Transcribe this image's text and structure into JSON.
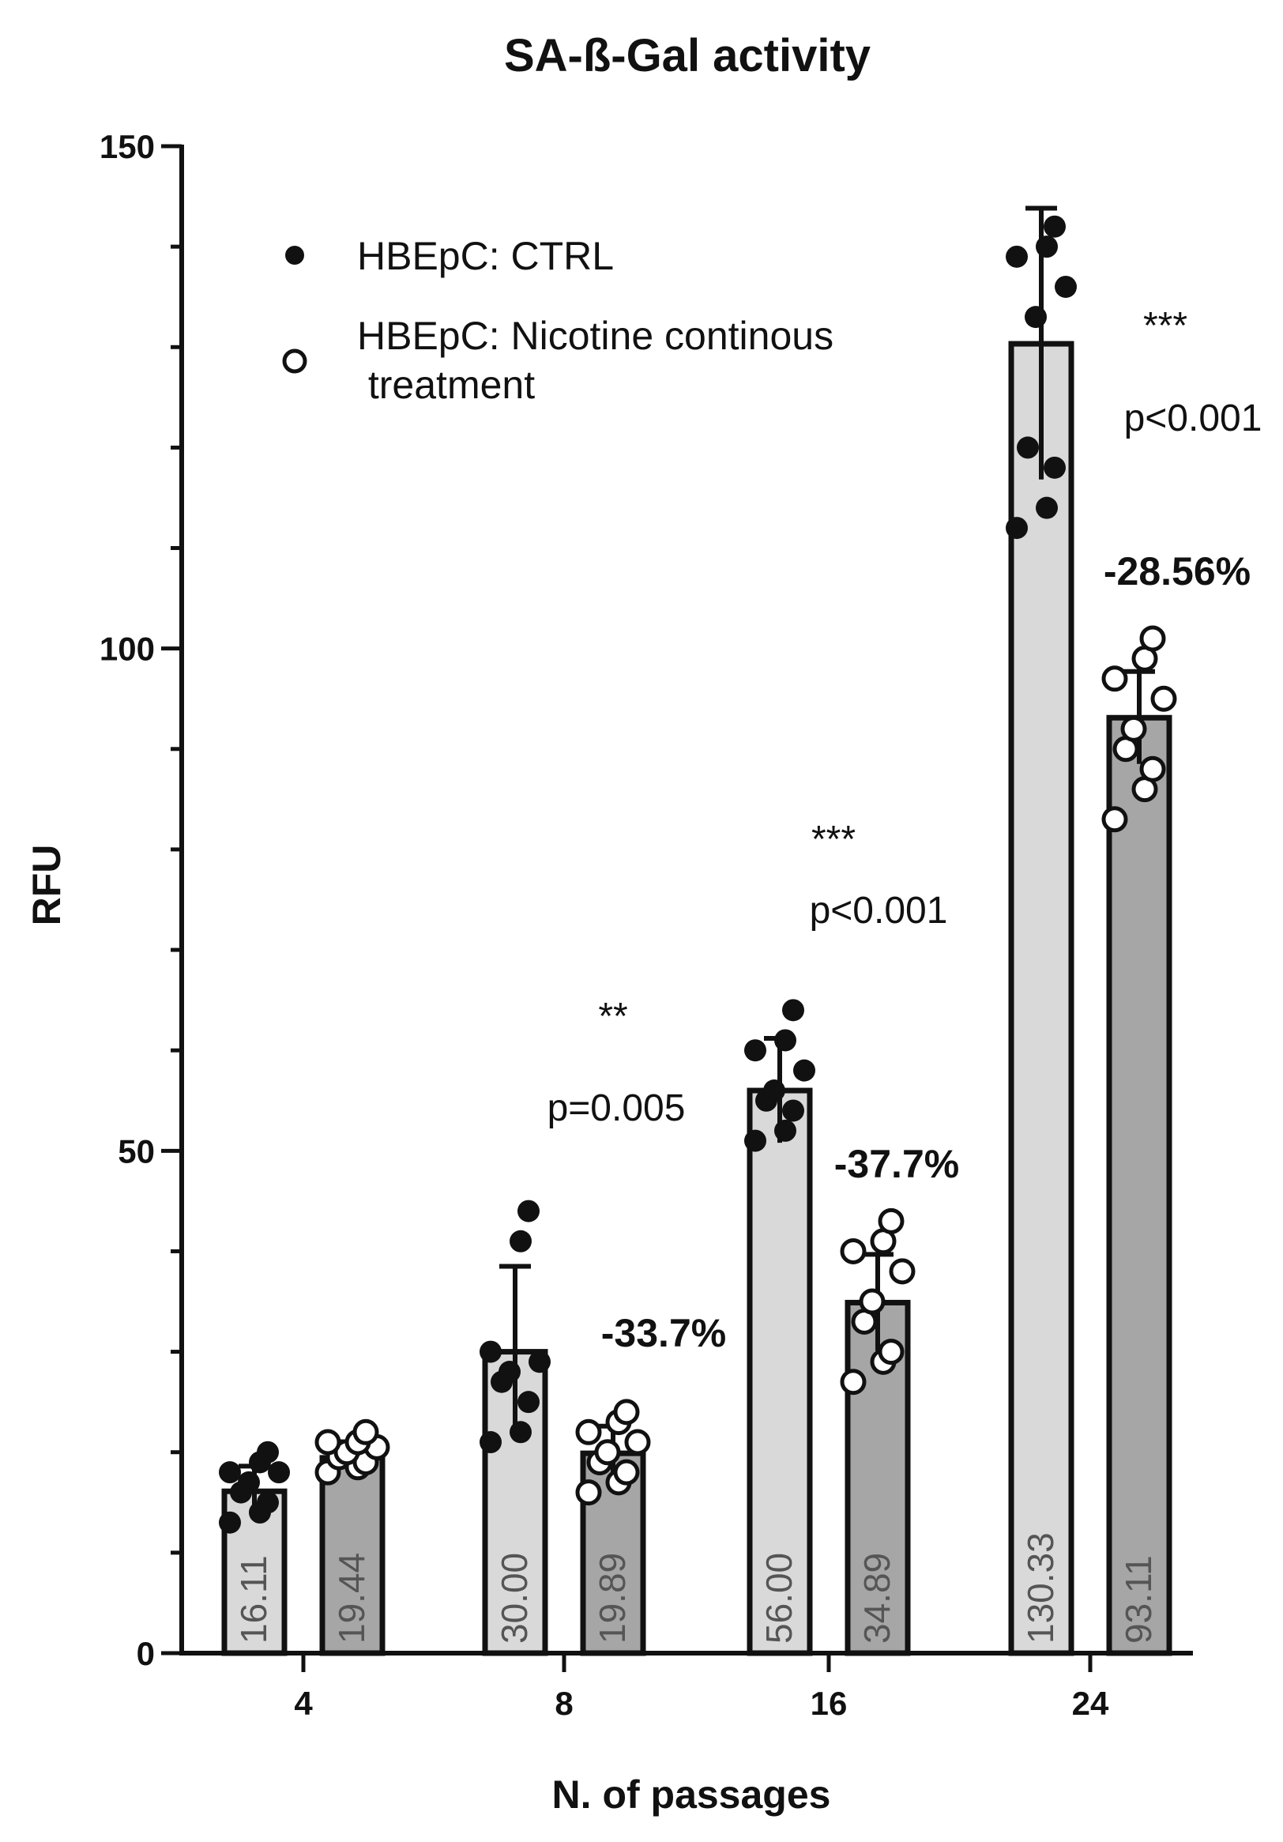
{
  "chart_data": {
    "type": "bar",
    "title": "SA-ß-Gal activity",
    "xlabel": "N. of passages",
    "ylabel": "RFU",
    "ylim": [
      0,
      150
    ],
    "yticks": [
      0,
      50,
      100,
      150
    ],
    "categories": [
      "4",
      "8",
      "16",
      "24"
    ],
    "legend_position": "top-left",
    "series": [
      {
        "name": "HBEpC: CTRL",
        "marker": "filled-circle",
        "color": "#d9d9d9",
        "values": [
          16.11,
          30.0,
          56.0,
          130.33
        ],
        "value_labels": [
          "16.11",
          "30.00",
          "56.00",
          "130.33"
        ],
        "errors": [
          2.5,
          8.5,
          5.2,
          13.5
        ],
        "points": [
          [
            13,
            14,
            15,
            16,
            17,
            18,
            18,
            19,
            20
          ],
          [
            21,
            22,
            25,
            27,
            28,
            29,
            30,
            41,
            44
          ],
          [
            51,
            52,
            54,
            55,
            56,
            58,
            60,
            61,
            64
          ],
          [
            112,
            114,
            118,
            120,
            133,
            136,
            139,
            140,
            142
          ]
        ]
      },
      {
        "name": "HBEpC: Nicotine continous\n treatment",
        "marker": "open-circle",
        "color": "#a6a6a6",
        "values": [
          19.44,
          19.89,
          34.89,
          93.11
        ],
        "value_labels": [
          "19.44",
          "19.89",
          "34.89",
          "93.11"
        ],
        "errors": [
          1.6,
          2.7,
          4.8,
          4.6
        ],
        "points": [
          [
            18,
            18.5,
            19,
            19.5,
            20,
            20.5,
            21,
            21,
            22
          ],
          [
            16,
            17,
            18,
            19,
            20,
            21,
            22,
            23,
            24
          ],
          [
            27,
            29,
            30,
            33,
            35,
            38,
            40,
            41,
            43
          ],
          [
            83,
            86,
            88,
            90,
            92,
            95,
            97,
            99,
            101
          ]
        ]
      }
    ],
    "annotations": [
      {
        "category": "8",
        "stars": "**",
        "p": "p=0.005",
        "pct": "-33.7%"
      },
      {
        "category": "16",
        "stars": "***",
        "p": "p<0.001",
        "pct": "-37.7%"
      },
      {
        "category": "24",
        "stars": "***",
        "p": "p<0.001",
        "pct": "-28.56%"
      }
    ]
  }
}
